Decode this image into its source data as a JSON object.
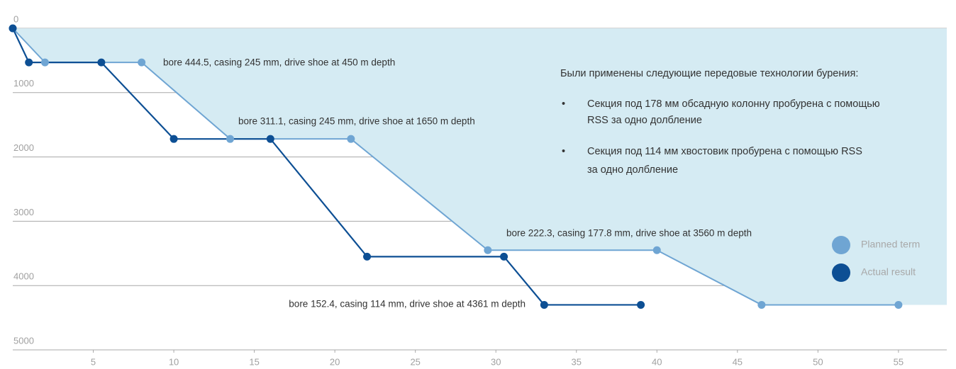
{
  "chart_data": {
    "type": "line",
    "xlim": [
      0,
      58
    ],
    "ylim": [
      0,
      5000
    ],
    "y_inverted": true,
    "xticks": [
      5,
      10,
      15,
      20,
      25,
      30,
      35,
      40,
      45,
      50,
      55
    ],
    "yticks": [
      0,
      1000,
      2000,
      3000,
      4000,
      5000
    ],
    "grid": true,
    "area_color": "#d5ebf3",
    "series": [
      {
        "name": "Planned term",
        "color": "#6fa5d3",
        "x": [
          0,
          2,
          8,
          13.5,
          21,
          29.5,
          40,
          46.5,
          55
        ],
        "values": [
          0,
          530,
          530,
          1720,
          1720,
          3450,
          3450,
          4300,
          4300
        ]
      },
      {
        "name": "Actual result",
        "color": "#0d4f94",
        "x": [
          0,
          1,
          5.5,
          10,
          16,
          22,
          30.5,
          33,
          39
        ],
        "values": [
          0,
          530,
          530,
          1720,
          1720,
          3550,
          3550,
          4300,
          4300
        ]
      }
    ],
    "annotations": [
      "bore 444.5, casing 245 mm, drive shoe at 450 m depth",
      "bore 311.1, casing 245 mm, drive shoe at 1650 m depth",
      "bore 222.3, casing 177.8 mm, drive shoe at 3560 m depth",
      "bore 152.4, casing 114 mm, drive shoe at 4361 m depth"
    ],
    "note": {
      "heading": "Были применены следующие передовые технологии бурения:",
      "bullet": "•",
      "items": [
        [
          "Секция под 178 мм обсадную колонну пробурена с помощью",
          "RSS за одно долбление"
        ],
        [
          "Секция под 114 мм хвостовик пробурена с помощью RSS",
          "за одно долбление"
        ]
      ]
    }
  }
}
